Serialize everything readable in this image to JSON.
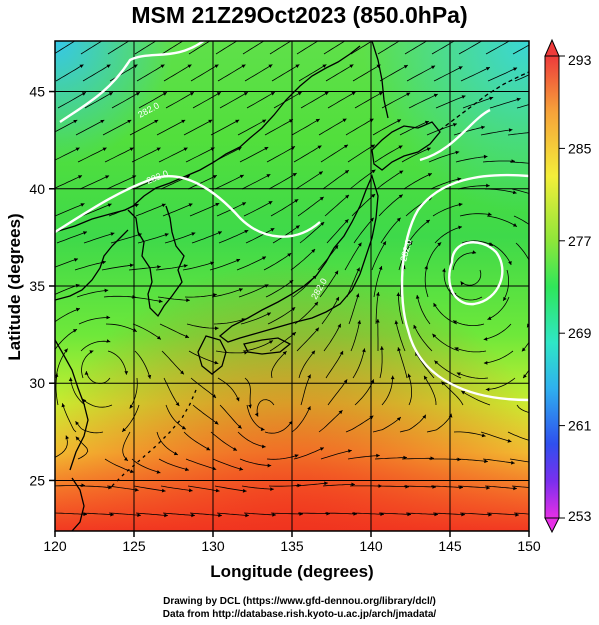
{
  "title": "MSM 21Z29Oct2023 (850.0hPa)",
  "axes": {
    "xlabel": "Longitude (degrees)",
    "ylabel": "Latitude  (degrees)",
    "xlim": [
      120,
      150
    ],
    "ylim": [
      22.4,
      47.6
    ],
    "xticks": [
      "120",
      "125",
      "130",
      "135",
      "140",
      "145",
      "150"
    ],
    "yticks": [
      "25",
      "30",
      "35",
      "40",
      "45"
    ]
  },
  "colorbar": {
    "labels": [
      "293",
      "285",
      "277",
      "269",
      "261",
      "253"
    ],
    "colors": [
      "#ee3b3b",
      "#f6a23a",
      "#f4ee3a",
      "#54e63a",
      "#2fe6b0",
      "#2fb0ee",
      "#2f4fee",
      "#6f2fee",
      "#e62fe6"
    ]
  },
  "contour_labels": [
    "282.0",
    "282.0",
    "282.0",
    "282.0"
  ],
  "credits": {
    "line1": "Drawing by DCL (https://www.gfd-dennou.org/library/dcl/)",
    "line2": "Data from http://database.rish.kyoto-u.ac.jp/arch/jmadata/"
  }
}
